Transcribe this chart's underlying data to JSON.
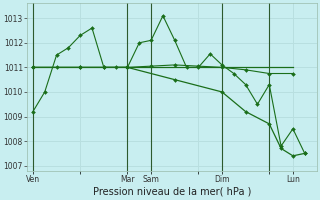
{
  "background_color": "#c8eef0",
  "grid_color": "#b8dfe0",
  "line_color": "#1a6e1a",
  "xlabel": "Pression niveau de la mer( hPa )",
  "ylim": [
    1006.8,
    1013.6
  ],
  "yticks": [
    1007,
    1008,
    1009,
    1010,
    1011,
    1012,
    1013
  ],
  "xtick_labels": [
    "Ven",
    "",
    "Mar",
    "Sam",
    "",
    "Dim",
    "",
    "Lun"
  ],
  "xtick_positions": [
    0,
    16,
    32,
    40,
    56,
    64,
    80,
    88
  ],
  "xlim": [
    -2,
    96
  ],
  "vlines": [
    0,
    32,
    40,
    64,
    80
  ],
  "series1_jagged": {
    "x": [
      0,
      4,
      8,
      12,
      16,
      20,
      24,
      28,
      32,
      36,
      40,
      44,
      48,
      52,
      56,
      60,
      64,
      68,
      72,
      76,
      80,
      84,
      88,
      92
    ],
    "y": [
      1009.2,
      1010.0,
      1011.5,
      1011.8,
      1012.3,
      1012.6,
      1011.0,
      1011.0,
      1011.0,
      1012.0,
      1012.1,
      1013.1,
      1012.1,
      1011.0,
      1011.0,
      1011.55,
      1011.1,
      1010.75,
      1010.3,
      1009.5,
      1010.3,
      1007.8,
      1008.5,
      1007.5
    ]
  },
  "series2_flat": {
    "x": [
      0,
      8,
      16,
      24,
      32,
      40,
      48,
      56,
      64,
      72,
      80,
      88
    ],
    "y": [
      1011.0,
      1011.0,
      1011.0,
      1011.0,
      1011.0,
      1011.05,
      1011.1,
      1011.05,
      1011.0,
      1010.9,
      1010.75,
      1010.75
    ]
  },
  "series3_flat2": {
    "x": [
      0,
      16,
      32,
      48,
      64,
      80,
      88
    ],
    "y": [
      1011.0,
      1011.0,
      1011.0,
      1011.0,
      1011.0,
      1011.0,
      1011.0
    ]
  },
  "series4_decline": {
    "x": [
      0,
      16,
      32,
      48,
      64,
      72,
      80,
      84,
      88,
      92
    ],
    "y": [
      1011.0,
      1011.0,
      1011.0,
      1010.5,
      1010.0,
      1009.2,
      1008.7,
      1007.7,
      1007.4,
      1007.5
    ]
  }
}
